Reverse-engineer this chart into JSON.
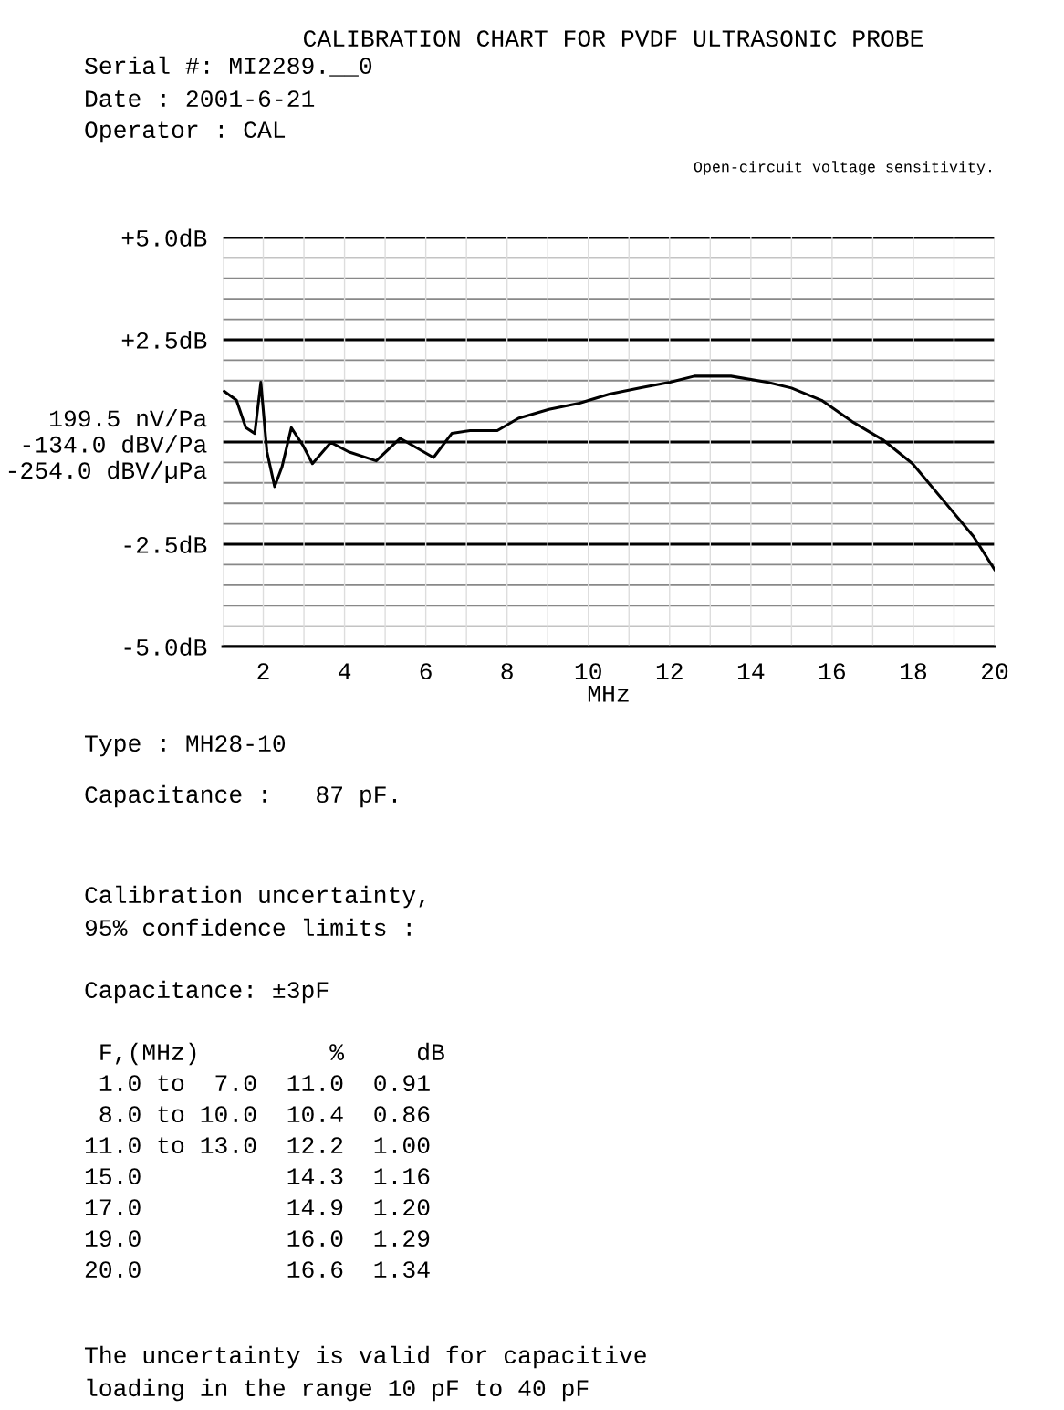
{
  "chart_data": {
    "type": "line",
    "title": "CALIBRATION CHART FOR PVDF ULTRASONIC PROBE",
    "xlabel": "MHz",
    "x": [
      1.04,
      1.34,
      1.57,
      1.79,
      1.94,
      2.09,
      2.28,
      2.46,
      2.69,
      2.98,
      3.21,
      3.66,
      4.1,
      4.78,
      5.37,
      6.19,
      6.64,
      7.09,
      7.76,
      8.28,
      9.03,
      9.78,
      10.52,
      11.27,
      12.01,
      12.61,
      13.51,
      14.4,
      15.0,
      15.74,
      16.49,
      17.24,
      17.98,
      18.73,
      19.48,
      20.0
    ],
    "series": [
      {
        "color": "#000000",
        "values": [
          1.24,
          1.02,
          0.35,
          0.21,
          1.46,
          -0.24,
          -1.09,
          -0.61,
          0.35,
          -0.09,
          -0.53,
          -0.01,
          -0.24,
          -0.46,
          0.09,
          -0.38,
          0.21,
          0.28,
          0.28,
          0.58,
          0.8,
          0.95,
          1.17,
          1.32,
          1.46,
          1.61,
          1.61,
          1.46,
          1.32,
          1.02,
          0.5,
          0.06,
          -0.53,
          -1.42,
          -2.31,
          -3.12
        ]
      }
    ],
    "xlim": [
      1,
      20
    ],
    "xticks": [
      {
        "value": 1,
        "label": null
      },
      2,
      {
        "value": 3,
        "label": null
      },
      4,
      {
        "value": 5,
        "label": null
      },
      6,
      {
        "value": 7,
        "label": null
      },
      8,
      {
        "value": 9,
        "label": null
      },
      10,
      {
        "value": 11,
        "label": null
      },
      12,
      {
        "value": 13,
        "label": null
      },
      14,
      {
        "value": 15,
        "label": null
      },
      16,
      {
        "value": 17,
        "label": null
      },
      18,
      {
        "value": 19,
        "label": null
      },
      20
    ],
    "ylim": [
      -5,
      5
    ],
    "yticks": [
      {
        "value": -5,
        "label": "-5.0dB"
      },
      {
        "value": -4.5,
        "label": null
      },
      {
        "value": -4,
        "label": null
      },
      {
        "value": -3.5,
        "label": null
      },
      {
        "value": -3,
        "label": null
      },
      {
        "value": -2.5,
        "label": "-2.5dB"
      },
      {
        "value": -2,
        "label": null
      },
      {
        "value": -1.5,
        "label": null
      },
      {
        "value": -1,
        "label": null
      },
      {
        "value": -0.5,
        "label": null
      },
      {
        "value": 0,
        "label": "199.5 nV/Pa\n-134.0 dBV/Pa\n-254.0 dBV/µPa"
      },
      {
        "value": 0.5,
        "label": null
      },
      {
        "value": 1,
        "label": null
      },
      {
        "value": 1.5,
        "label": null
      },
      {
        "value": 2,
        "label": null
      },
      {
        "value": 2.5,
        "label": "+2.5dB"
      },
      {
        "value": 3,
        "label": null
      },
      {
        "value": 3.5,
        "label": null
      },
      {
        "value": 4,
        "label": null
      },
      {
        "value": 4.5,
        "label": null
      },
      {
        "value": 5,
        "label": "+5.0dB"
      }
    ],
    "grid": true,
    "legend": false,
    "marker": "none",
    "line_style": "solid",
    "annotations": [
      "Serial #: MI2289.__0",
      "Date : 2001-6-21",
      "Operator : CAL",
      "Open-circuit voltage sensitivity.",
      "Type : MH28-10",
      "Capacitance :   87 pF.",
      "Calibration uncertainty,",
      "95% confidence limits :",
      "Capacitance: ±3pF",
      " F,(MHz)         %     dB",
      " 1.0 to  7.0  11.0  0.91",
      " 8.0 to 10.0  10.4  0.86",
      "11.0 to 13.0  12.2  1.00",
      "15.0          14.3  1.16",
      "17.0          14.9  1.20",
      "19.0          16.0  1.29",
      "20.0          16.6  1.34",
      "The uncertainty is valid for capacitive",
      "loading in the range 10 pF to 40 pF"
    ]
  }
}
